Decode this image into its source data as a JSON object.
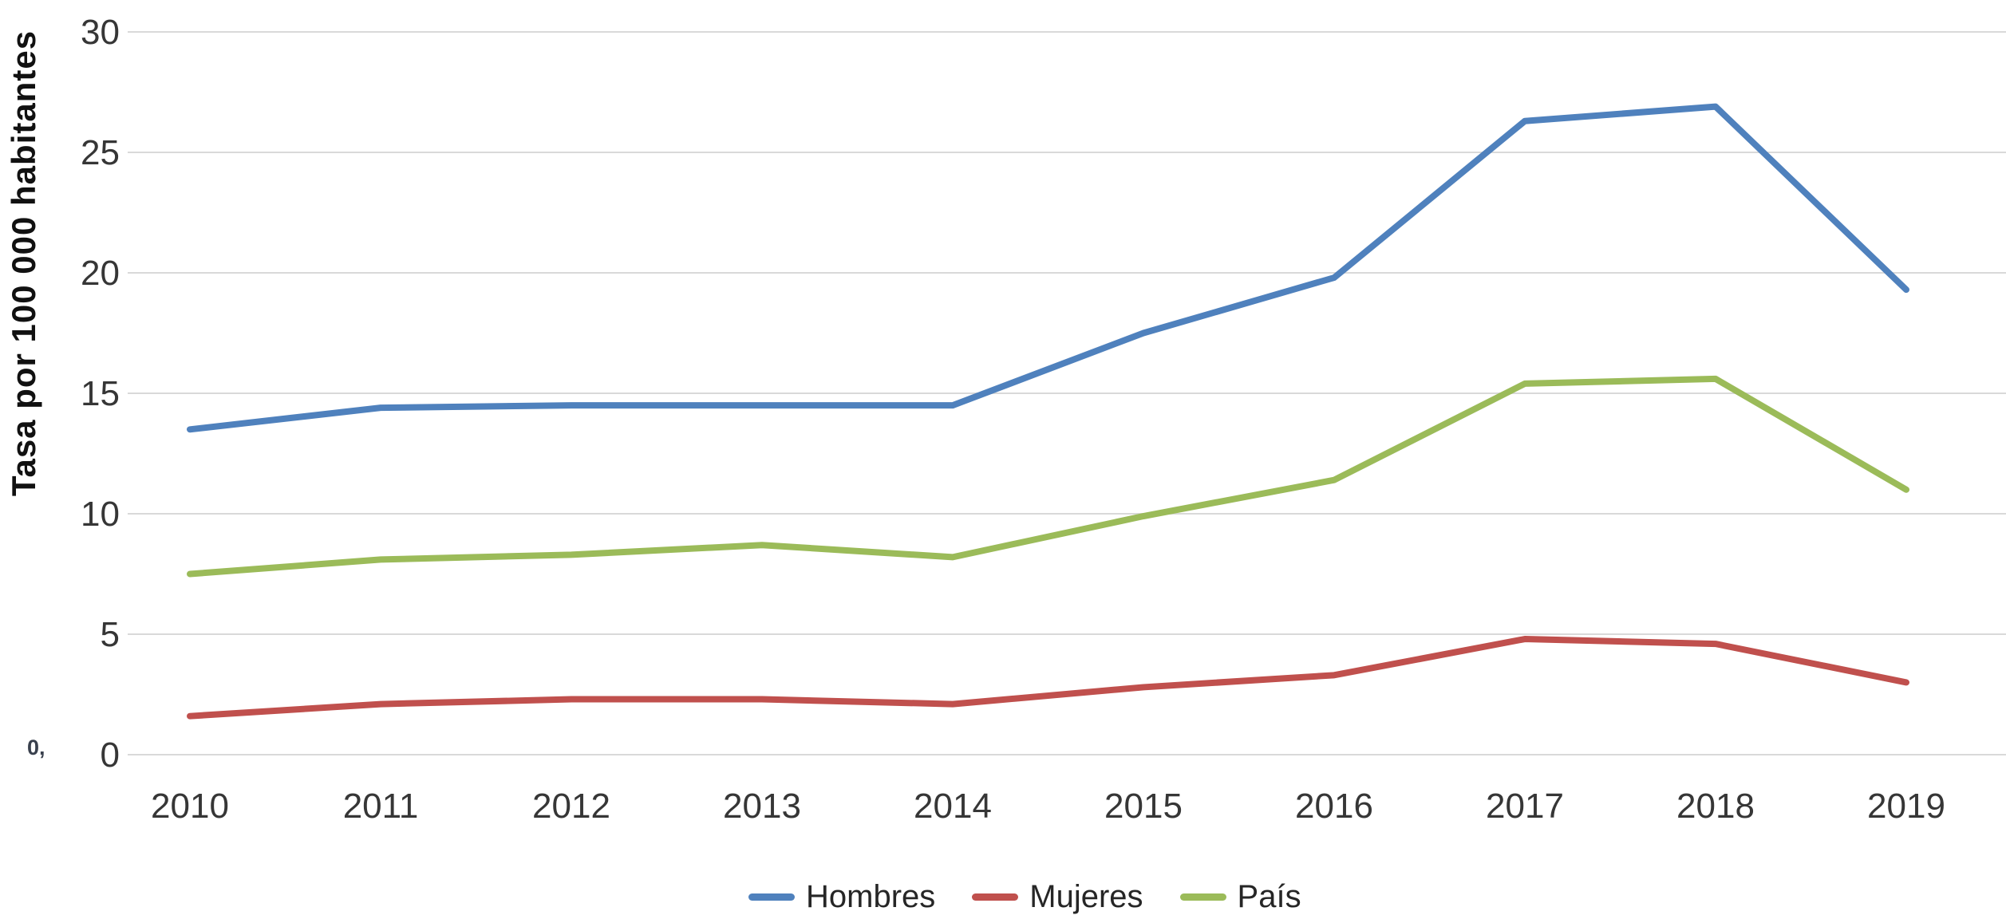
{
  "artifacts": {
    "stray_label": "0,"
  },
  "chart_data": {
    "type": "line",
    "title": "",
    "ylabel": "Tasa por 100 000 habitantes",
    "xlabel": "",
    "categories": [
      "2010",
      "2011",
      "2012",
      "2013",
      "2014",
      "2015",
      "2016",
      "2017",
      "2018",
      "2019"
    ],
    "series": [
      {
        "name": "Hombres",
        "color": "#4F81BD",
        "values": [
          13.5,
          14.4,
          14.5,
          14.5,
          14.5,
          17.5,
          19.8,
          26.3,
          26.9,
          19.3
        ]
      },
      {
        "name": "Mujeres",
        "color": "#C0504D",
        "values": [
          1.6,
          2.1,
          2.3,
          2.3,
          2.1,
          2.8,
          3.3,
          4.8,
          4.6,
          3.0
        ]
      },
      {
        "name": "País",
        "color": "#9BBB59",
        "values": [
          7.5,
          8.1,
          8.3,
          8.7,
          8.2,
          9.9,
          11.4,
          15.4,
          15.6,
          11.0
        ]
      }
    ],
    "ylim": [
      0,
      30
    ],
    "ytick_step": 5,
    "grid": true,
    "grid_color": "#D9D9D9",
    "text_color": "#363636",
    "legend_position": "bottom"
  }
}
